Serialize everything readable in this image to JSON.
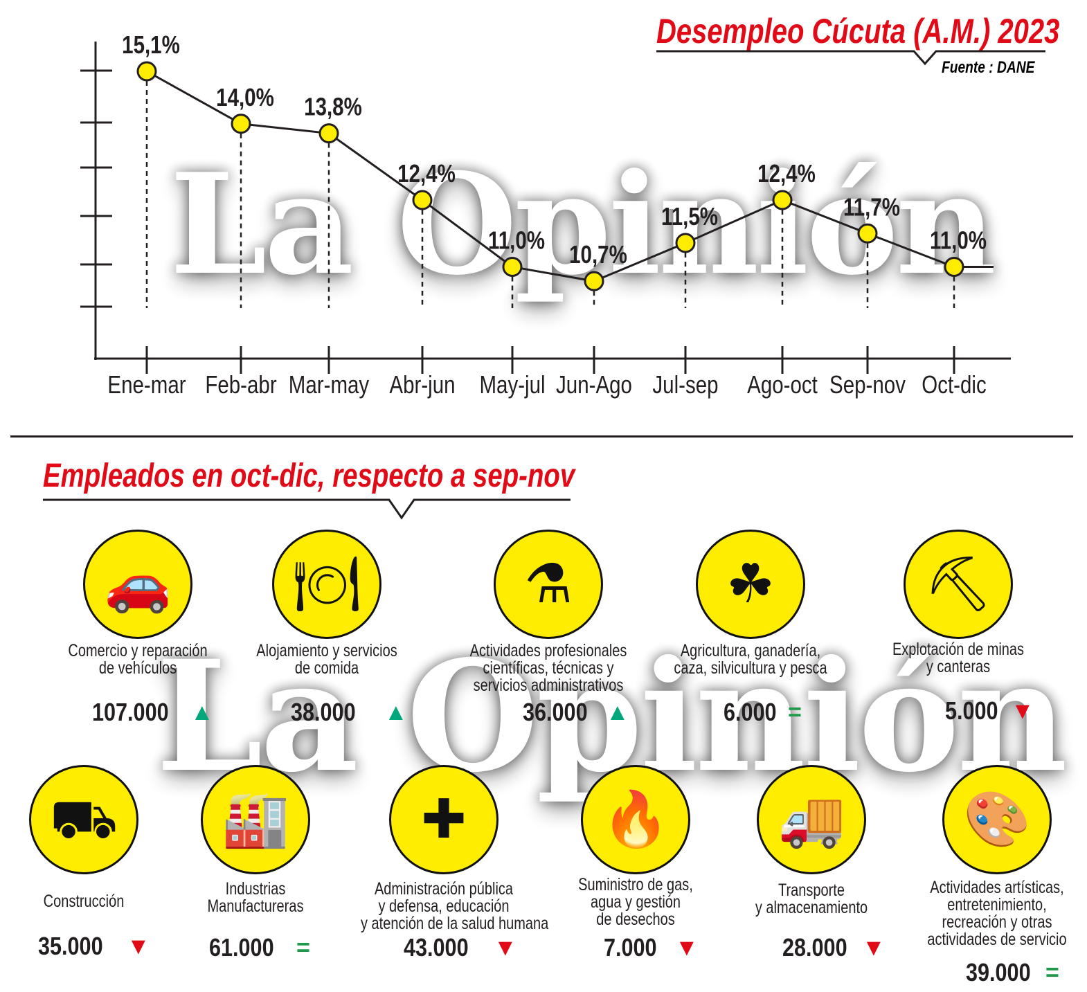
{
  "watermark": "La Opinión",
  "chart_data": {
    "type": "line",
    "title": "Desempleo Cúcuta (A.M.) 2023",
    "source": "Fuente : DANE",
    "categories": [
      "Ene-mar",
      "Feb-abr",
      "Mar-may",
      "Abr-jun",
      "May-jul",
      "Jun-Ago",
      "Jul-sep",
      "Ago-oct",
      "Sep-nov",
      "Oct-dic"
    ],
    "values": [
      15.1,
      14.0,
      13.8,
      12.4,
      11.0,
      10.7,
      11.5,
      12.4,
      11.7,
      11.0
    ],
    "data_labels": [
      "15,1%",
      "14,0%",
      "13,8%",
      "12,4%",
      "11,0%",
      "10,7%",
      "11,5%",
      "12,4%",
      "11,7%",
      "11,0%"
    ],
    "xlabel": "",
    "ylabel": "",
    "y_tick_labels": false,
    "grid": false,
    "marker_color": "#ffed00",
    "line_color": "#231f20"
  },
  "section": {
    "title": "Empleados en oct-dic, respecto a sep-nov",
    "sectors": [
      {
        "label": [
          "Comercio y reparación",
          "de vehículos"
        ],
        "value": "107.000",
        "trend": "up",
        "icon": "car-wrench"
      },
      {
        "label": [
          "Alojamiento y servicios",
          "de comida"
        ],
        "value": "38.000",
        "trend": "up",
        "icon": "food-cloche"
      },
      {
        "label": [
          "Actividades profesionales",
          "científicas, técnicas y",
          "servicios administrativos"
        ],
        "value": "36.000",
        "trend": "up",
        "icon": "scientist"
      },
      {
        "label": [
          "Agricultura, ganadería,",
          "caza, silvicultura y pesca"
        ],
        "value": "6.000",
        "trend": "equal",
        "icon": "farmer"
      },
      {
        "label": [
          "Explotación de minas",
          "y canteras"
        ],
        "value": "5.000",
        "trend": "down",
        "icon": "pickaxe"
      },
      {
        "label": [
          "Construcción"
        ],
        "value": "35.000",
        "trend": "down",
        "icon": "excavator"
      },
      {
        "label": [
          "Industrias",
          "Manufactureras"
        ],
        "value": "61.000",
        "trend": "equal",
        "icon": "factory"
      },
      {
        "label": [
          "Administración pública",
          "y defensa, educación",
          "y atención de la salud humana"
        ],
        "value": "43.000",
        "trend": "down",
        "icon": "health-hands"
      },
      {
        "label": [
          "Suministro de gas,",
          "agua y gestión",
          "de desechos"
        ],
        "value": "7.000",
        "trend": "down",
        "icon": "gas-flame"
      },
      {
        "label": [
          "Transporte",
          "y almacenamiento"
        ],
        "value": "28.000",
        "trend": "down",
        "icon": "truck"
      },
      {
        "label": [
          "Actividades artísticas,",
          "entretenimiento,",
          "recreación y otras",
          "actividades de servicio"
        ],
        "value": "39.000",
        "trend": "equal",
        "icon": "art-palette"
      }
    ],
    "trend_symbols": {
      "up": "▲",
      "down": "▼",
      "equal": "="
    }
  }
}
